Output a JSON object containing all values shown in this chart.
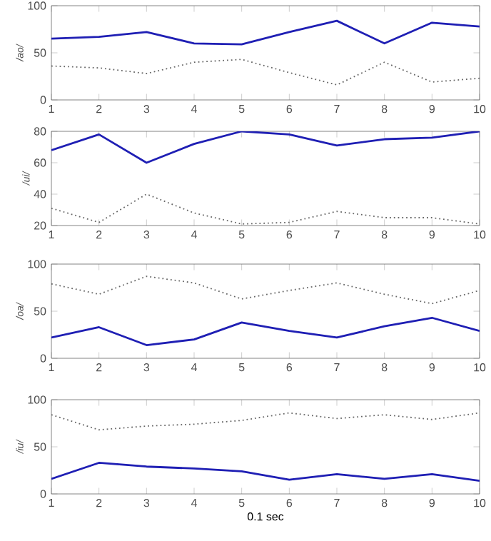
{
  "chart_data": [
    {
      "type": "line",
      "ylabel": "/ao/",
      "x": [
        1,
        2,
        3,
        4,
        5,
        6,
        7,
        8,
        9,
        10
      ],
      "xlim": [
        1,
        10
      ],
      "xticks": [
        1,
        2,
        3,
        4,
        5,
        6,
        7,
        8,
        9,
        10
      ],
      "ylim": [
        0,
        100
      ],
      "yticks": [
        0,
        50,
        100
      ],
      "grid": false,
      "marker": "none",
      "series": [
        {
          "color": "#1f1fb4",
          "line_style": "solid",
          "values": [
            65,
            67,
            72,
            60,
            59,
            72,
            84,
            60,
            82,
            78
          ]
        },
        {
          "color": "#666666",
          "line_style": "dotted",
          "values": [
            36,
            34,
            28,
            40,
            43,
            29,
            16,
            40,
            19,
            23
          ]
        }
      ]
    },
    {
      "type": "line",
      "ylabel": "/ui/",
      "x": [
        1,
        2,
        3,
        4,
        5,
        6,
        7,
        8,
        9,
        10
      ],
      "xlim": [
        1,
        10
      ],
      "xticks": [
        1,
        2,
        3,
        4,
        5,
        6,
        7,
        8,
        9,
        10
      ],
      "ylim": [
        20,
        80
      ],
      "yticks": [
        20,
        40,
        60,
        80
      ],
      "grid": false,
      "marker": "none",
      "series": [
        {
          "color": "#1f1fb4",
          "line_style": "solid",
          "values": [
            68,
            78,
            60,
            72,
            80,
            78,
            71,
            75,
            76,
            80
          ]
        },
        {
          "color": "#666666",
          "line_style": "dotted",
          "values": [
            31,
            22,
            40,
            28,
            21,
            22,
            29,
            25,
            25,
            21
          ]
        }
      ]
    },
    {
      "type": "line",
      "ylabel": "/oa/",
      "x": [
        1,
        2,
        3,
        4,
        5,
        6,
        7,
        8,
        9,
        10
      ],
      "xlim": [
        1,
        10
      ],
      "xticks": [
        1,
        2,
        3,
        4,
        5,
        6,
        7,
        8,
        9,
        10
      ],
      "ylim": [
        0,
        100
      ],
      "yticks": [
        0,
        50,
        100
      ],
      "grid": false,
      "marker": "none",
      "series": [
        {
          "color": "#1f1fb4",
          "line_style": "solid",
          "values": [
            22,
            33,
            14,
            20,
            38,
            29,
            22,
            34,
            43,
            29
          ]
        },
        {
          "color": "#666666",
          "line_style": "dotted",
          "values": [
            79,
            68,
            87,
            80,
            63,
            72,
            80,
            68,
            58,
            72
          ]
        }
      ]
    },
    {
      "type": "line",
      "ylabel": "/iu/",
      "xlabel": "0.1 sec",
      "x": [
        1,
        2,
        3,
        4,
        5,
        6,
        7,
        8,
        9,
        10
      ],
      "xlim": [
        1,
        10
      ],
      "xticks": [
        1,
        2,
        3,
        4,
        5,
        6,
        7,
        8,
        9,
        10
      ],
      "ylim": [
        0,
        100
      ],
      "yticks": [
        0,
        50,
        100
      ],
      "grid": false,
      "marker": "none",
      "series": [
        {
          "color": "#1f1fb4",
          "line_style": "solid",
          "values": [
            16,
            33,
            29,
            27,
            24,
            15,
            21,
            16,
            21,
            14
          ]
        },
        {
          "color": "#666666",
          "line_style": "dotted",
          "values": [
            84,
            68,
            72,
            74,
            78,
            86,
            80,
            84,
            79,
            86
          ]
        }
      ]
    }
  ]
}
